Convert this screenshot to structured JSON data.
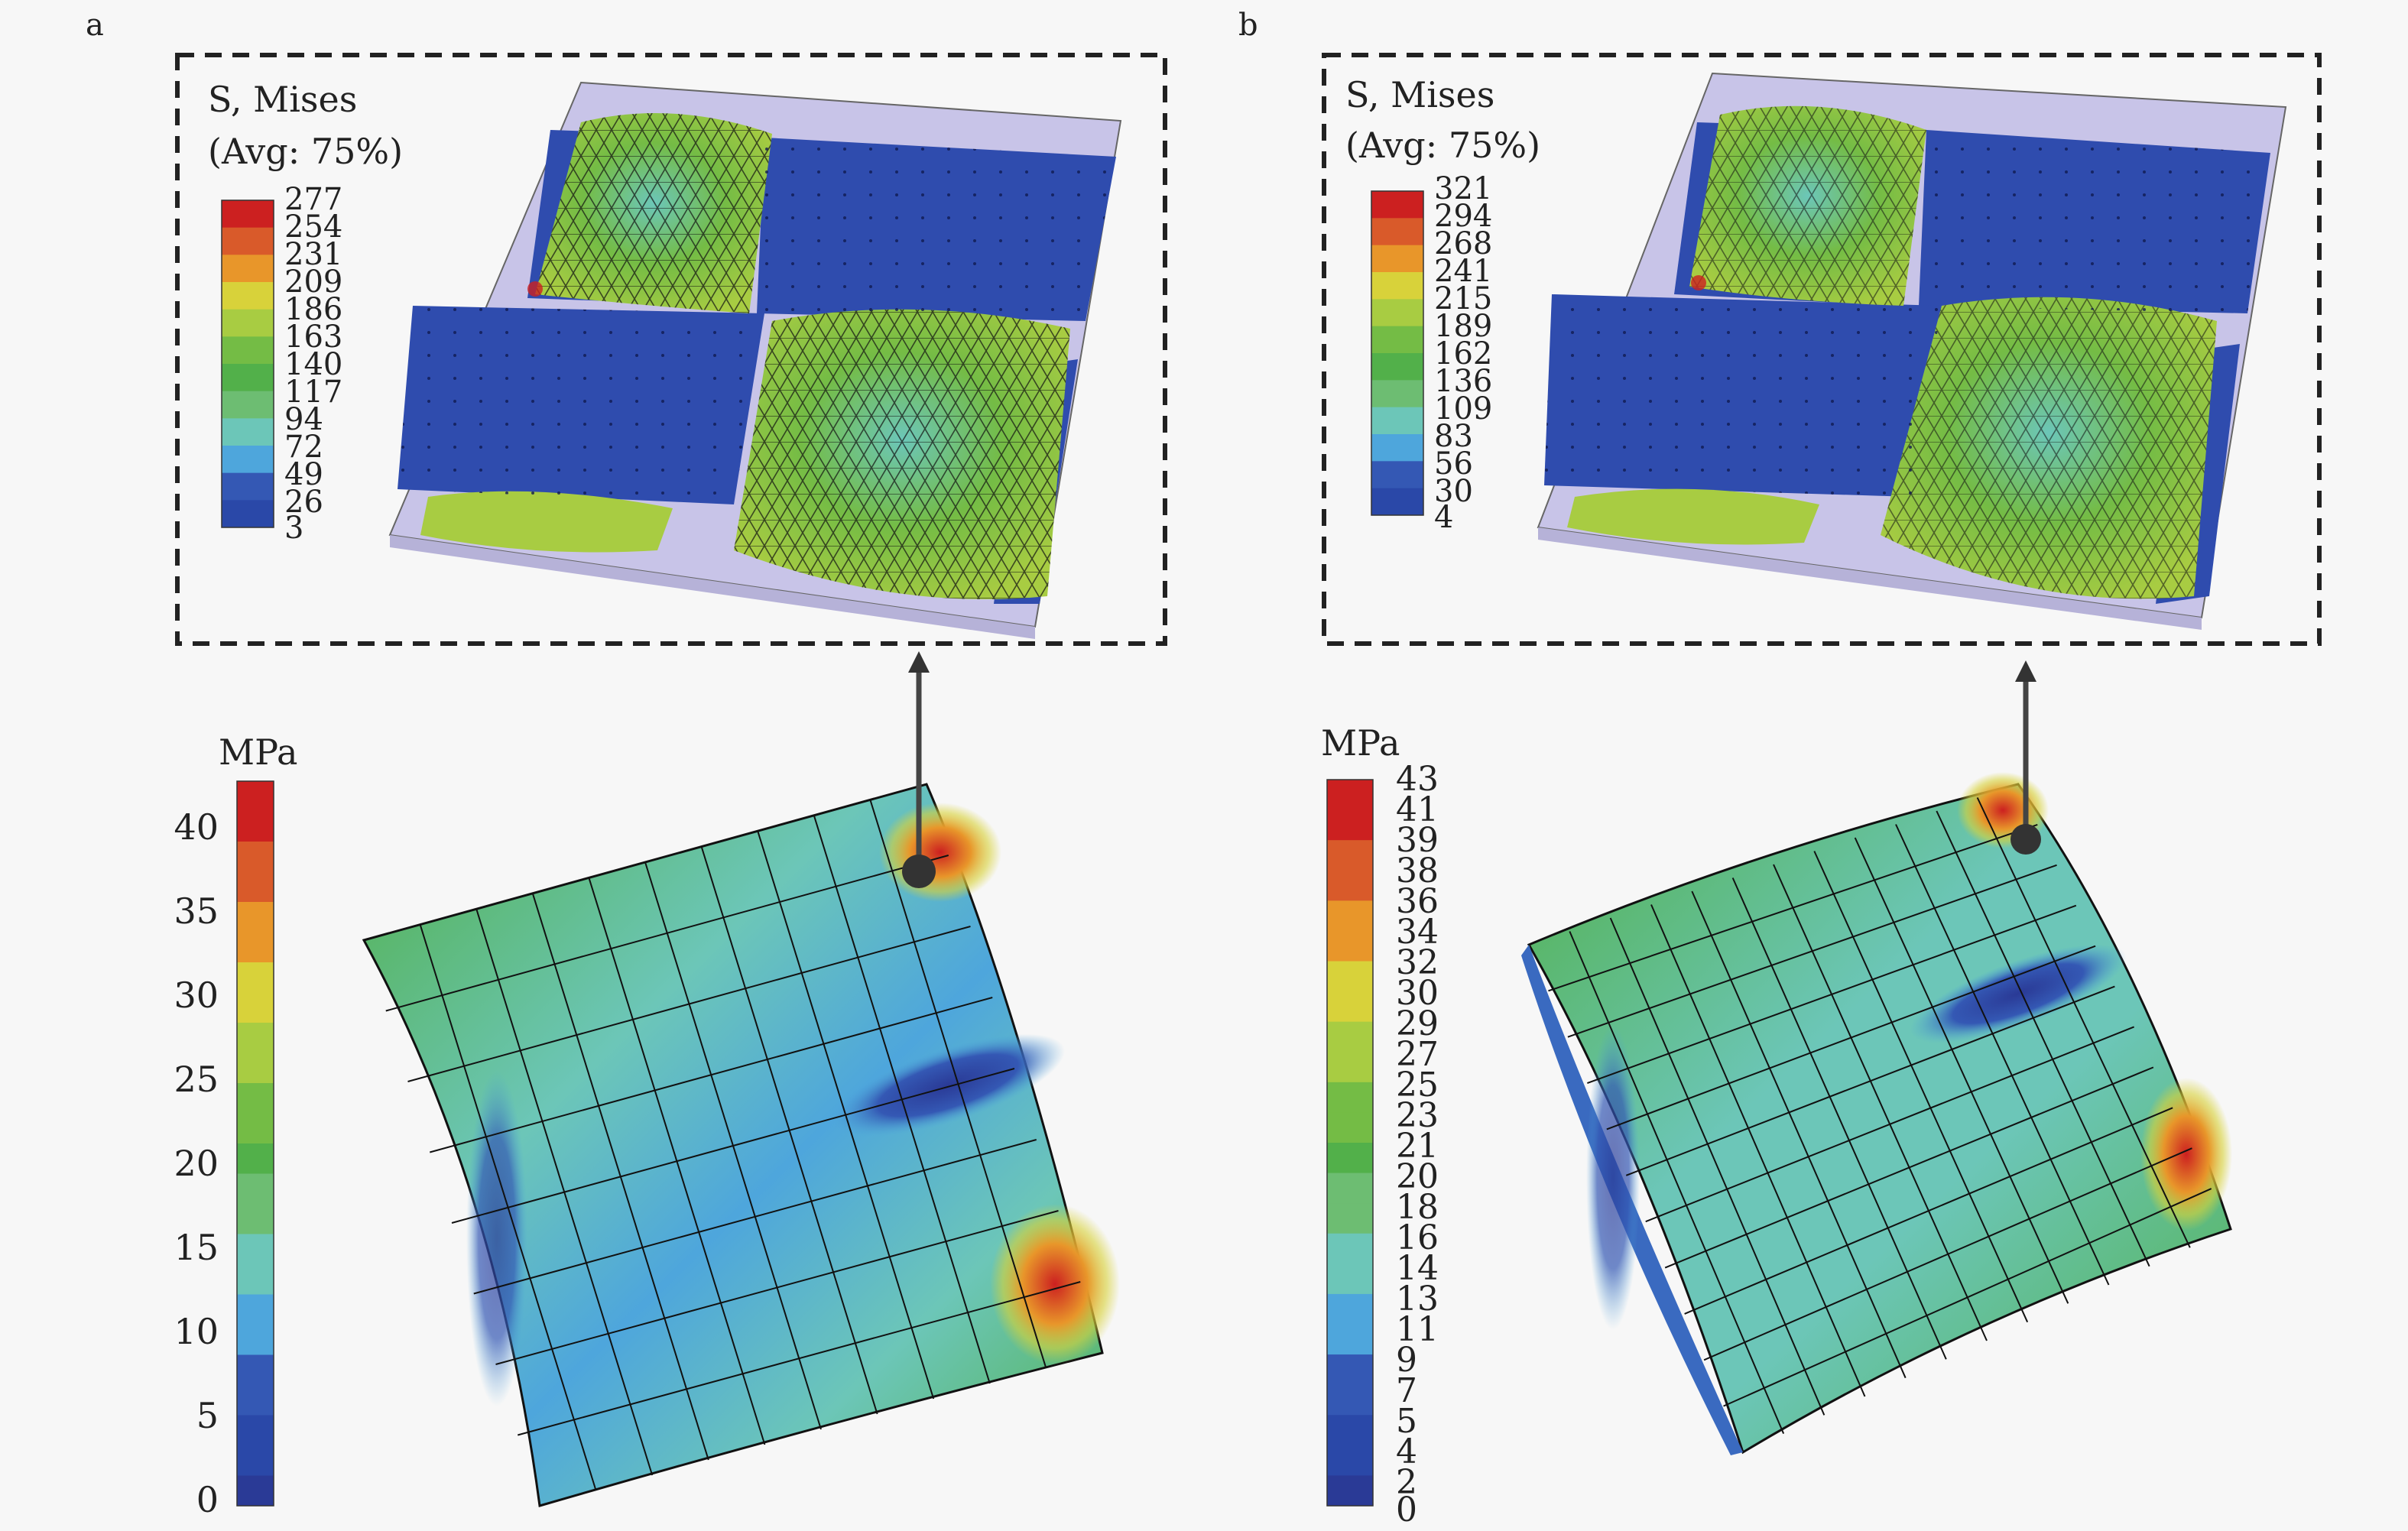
{
  "panels": [
    {
      "label": "a",
      "legend_title": "S, Mises",
      "legend_subtitle": "(Avg: 75%)",
      "legend_values": [
        "277",
        "254",
        "231",
        "209",
        "186",
        "163",
        "140",
        "117",
        "94",
        "72",
        "49",
        "26",
        "3"
      ],
      "scale_unit": "MPa",
      "scale_ticks": [
        "40",
        "35",
        "30",
        "25",
        "20",
        "15",
        "10",
        "5",
        "0"
      ]
    },
    {
      "label": "b",
      "legend_title": "S, Mises",
      "legend_subtitle": "(Avg: 75%)",
      "legend_values": [
        "321",
        "294",
        "268",
        "241",
        "215",
        "189",
        "162",
        "136",
        "109",
        "83",
        "56",
        "30",
        "4"
      ],
      "scale_unit": "MPa",
      "scale_ticks": [
        "43",
        "41",
        "39",
        "38",
        "36",
        "34",
        "32",
        "30",
        "29",
        "27",
        "25",
        "23",
        "21",
        "20",
        "18",
        "16",
        "14",
        "13",
        "11",
        "9",
        "7",
        "5",
        "4",
        "2",
        "0"
      ]
    }
  ],
  "colors": {
    "contour": [
      "#cc2020",
      "#d95a2a",
      "#e8962a",
      "#d8d23a",
      "#a8cc42",
      "#74bc45",
      "#52b04a",
      "#6dbd72",
      "#6cc6b8",
      "#4ea6dc",
      "#3458b4",
      "#2a48a8",
      "#2a3a96"
    ],
    "shell_frame": "#c8c4e8",
    "mesh_line": "#111111",
    "box_dash": "#222222"
  }
}
